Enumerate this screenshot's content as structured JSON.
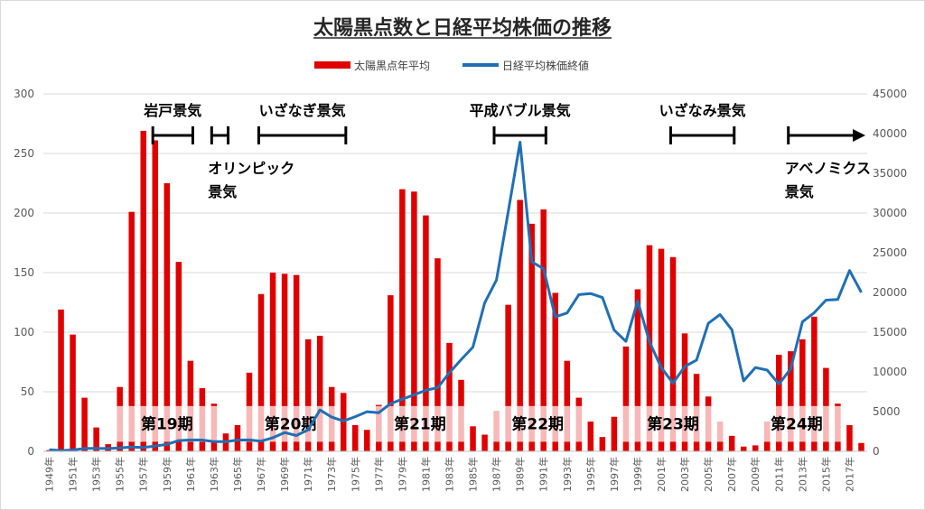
{
  "chart_data": {
    "type": "bar+line",
    "title": "太陽黒点数と日経平均株価の推移",
    "legend": [
      {
        "name": "太陽黒点年平均",
        "color": "#e00000",
        "kind": "bar"
      },
      {
        "name": "日経平均株価終値",
        "color": "#1f6fb5",
        "kind": "line"
      }
    ],
    "years": [
      1949,
      1950,
      1951,
      1952,
      1953,
      1954,
      1955,
      1956,
      1957,
      1958,
      1959,
      1960,
      1961,
      1962,
      1963,
      1964,
      1965,
      1966,
      1967,
      1968,
      1969,
      1970,
      1971,
      1972,
      1973,
      1974,
      1975,
      1976,
      1977,
      1978,
      1979,
      1980,
      1981,
      1982,
      1983,
      1984,
      1985,
      1986,
      1987,
      1988,
      1989,
      1990,
      1991,
      1992,
      1993,
      1994,
      1995,
      1996,
      1997,
      1998,
      1999,
      2000,
      2001,
      2002,
      2003,
      2004,
      2005,
      2006,
      2007,
      2008,
      2009,
      2010,
      2011,
      2012,
      2013,
      2014,
      2015,
      2016,
      2017,
      2018
    ],
    "x_tick_labels": [
      "1949年",
      "1951年",
      "1953年",
      "1955年",
      "1957年",
      "1959年",
      "1961年",
      "1963年",
      "1965年",
      "1967年",
      "1969年",
      "1971年",
      "1973年",
      "1975年",
      "1977年",
      "1979年",
      "1981年",
      "1983年",
      "1985年",
      "1987年",
      "1989年",
      "1991年",
      "1993年",
      "1995年",
      "1997年",
      "1999年",
      "2001年",
      "2003年",
      "2005年",
      "2007年",
      "2009年",
      "2011年",
      "2013年",
      "2015年",
      "2017年"
    ],
    "series": [
      {
        "name": "太陽黒点年平均",
        "axis": "left",
        "values": [
          1,
          119,
          98,
          45,
          20,
          6,
          54,
          201,
          269,
          261,
          225,
          159,
          76,
          53,
          40,
          15,
          22,
          66,
          132,
          150,
          149,
          148,
          94,
          97,
          54,
          49,
          22,
          18,
          39,
          131,
          220,
          218,
          198,
          162,
          91,
          60,
          21,
          14,
          34,
          123,
          211,
          191,
          203,
          133,
          76,
          45,
          25,
          12,
          29,
          88,
          136,
          173,
          170,
          163,
          99,
          65,
          46,
          25,
          13,
          4,
          5,
          25,
          81,
          84,
          94,
          113,
          70,
          40,
          22,
          7
        ]
      },
      {
        "name": "日経平均株価終値",
        "axis": "right",
        "values": [
          200,
          100,
          166,
          362,
          377,
          356,
          425,
          549,
          474,
          666,
          874,
          1356,
          1432,
          1420,
          1225,
          1216,
          1417,
          1432,
          1283,
          1714,
          2359,
          1987,
          2714,
          5207,
          4306,
          3817,
          4358,
          4991,
          4866,
          6001,
          6569,
          7116,
          7681,
          8017,
          9893,
          11542,
          13113,
          18701,
          21564,
          30159,
          38916,
          23849,
          22984,
          16925,
          17417,
          19723,
          19868,
          19361,
          15259,
          13842,
          18934,
          13786,
          10543,
          8579,
          10677,
          11489,
          16111,
          17226,
          15308,
          8860,
          10546,
          10229,
          8455,
          10395,
          16291,
          17451,
          19034,
          19114,
          22765,
          20015
        ]
      }
    ],
    "y_left": {
      "min": 0,
      "max": 300,
      "ticks": [
        0,
        50,
        100,
        150,
        200,
        250,
        300
      ]
    },
    "y_right": {
      "min": 0,
      "max": 45000,
      "ticks": [
        0,
        5000,
        10000,
        15000,
        20000,
        25000,
        30000,
        35000,
        40000,
        45000
      ]
    },
    "booms": [
      {
        "label": "岩戸景気",
        "start": 1958,
        "end": 1961
      },
      {
        "label": "オリンピック",
        "label2": "景気",
        "start": 1963,
        "end": 1964
      },
      {
        "label": "いざなぎ景気",
        "start": 1967,
        "end": 1974
      },
      {
        "label": "平成バブル景気",
        "start": 1987,
        "end": 1991
      },
      {
        "label": "いざなみ景気",
        "start": 2002,
        "end": 2007
      },
      {
        "label": "アベノミクス",
        "label2": "景気",
        "start": 2012,
        "end": 2018,
        "arrow": true
      }
    ],
    "cycles": [
      {
        "label": "第19期",
        "start": 1955,
        "end": 1963
      },
      {
        "label": "第20期",
        "start": 1966,
        "end": 1973
      },
      {
        "label": "第21期",
        "start": 1977,
        "end": 1984
      },
      {
        "label": "第22期",
        "start": 1987,
        "end": 1994
      },
      {
        "label": "第23期",
        "start": 1998,
        "end": 2006
      },
      {
        "label": "第24期",
        "start": 2009,
        "end": 2016
      }
    ]
  }
}
